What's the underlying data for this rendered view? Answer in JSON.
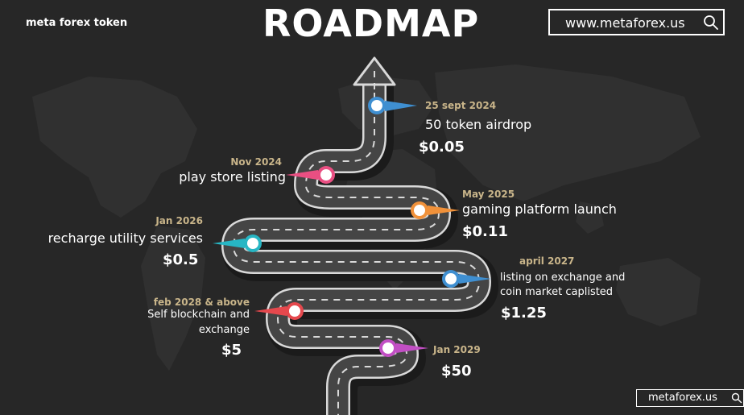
{
  "header": {
    "brand": "meta forex token",
    "title": "ROADMAP",
    "url": "www.metaforex.us",
    "search_icon": "search-icon"
  },
  "footer": {
    "url": "metaforex.us",
    "search_icon": "search-icon"
  },
  "milestones": [
    {
      "date": "25 sept 2024",
      "event": "50 token airdrop",
      "price": "$0.05",
      "color": "#3f8fd1"
    },
    {
      "date": "Nov 2024",
      "event": "play store listing",
      "price": "",
      "color": "#e94f82"
    },
    {
      "date": "May 2025",
      "event": "gaming platform launch",
      "price": "$0.11",
      "color": "#f0913a"
    },
    {
      "date": "Jan 2026",
      "event": "recharge utility services",
      "price": "$0.5",
      "color": "#27b6c4"
    },
    {
      "date": "april 2027",
      "event_line1": "listing on exchange and",
      "event_line2": "coin market caplisted",
      "price": "$1.25",
      "color": "#3f8fd1"
    },
    {
      "date": "feb 2028 & above",
      "event_line1": "Self blockchain and",
      "event_line2": "exchange",
      "price": "$5",
      "color": "#e5484d"
    },
    {
      "date": "Jan 2029",
      "event": "",
      "price": "$50",
      "color": "#c24fc4"
    }
  ],
  "colors": {
    "background": "#272727",
    "road": "#4a4a4a",
    "road_edge": "#d9d9d9",
    "date": "#c9b58a"
  }
}
